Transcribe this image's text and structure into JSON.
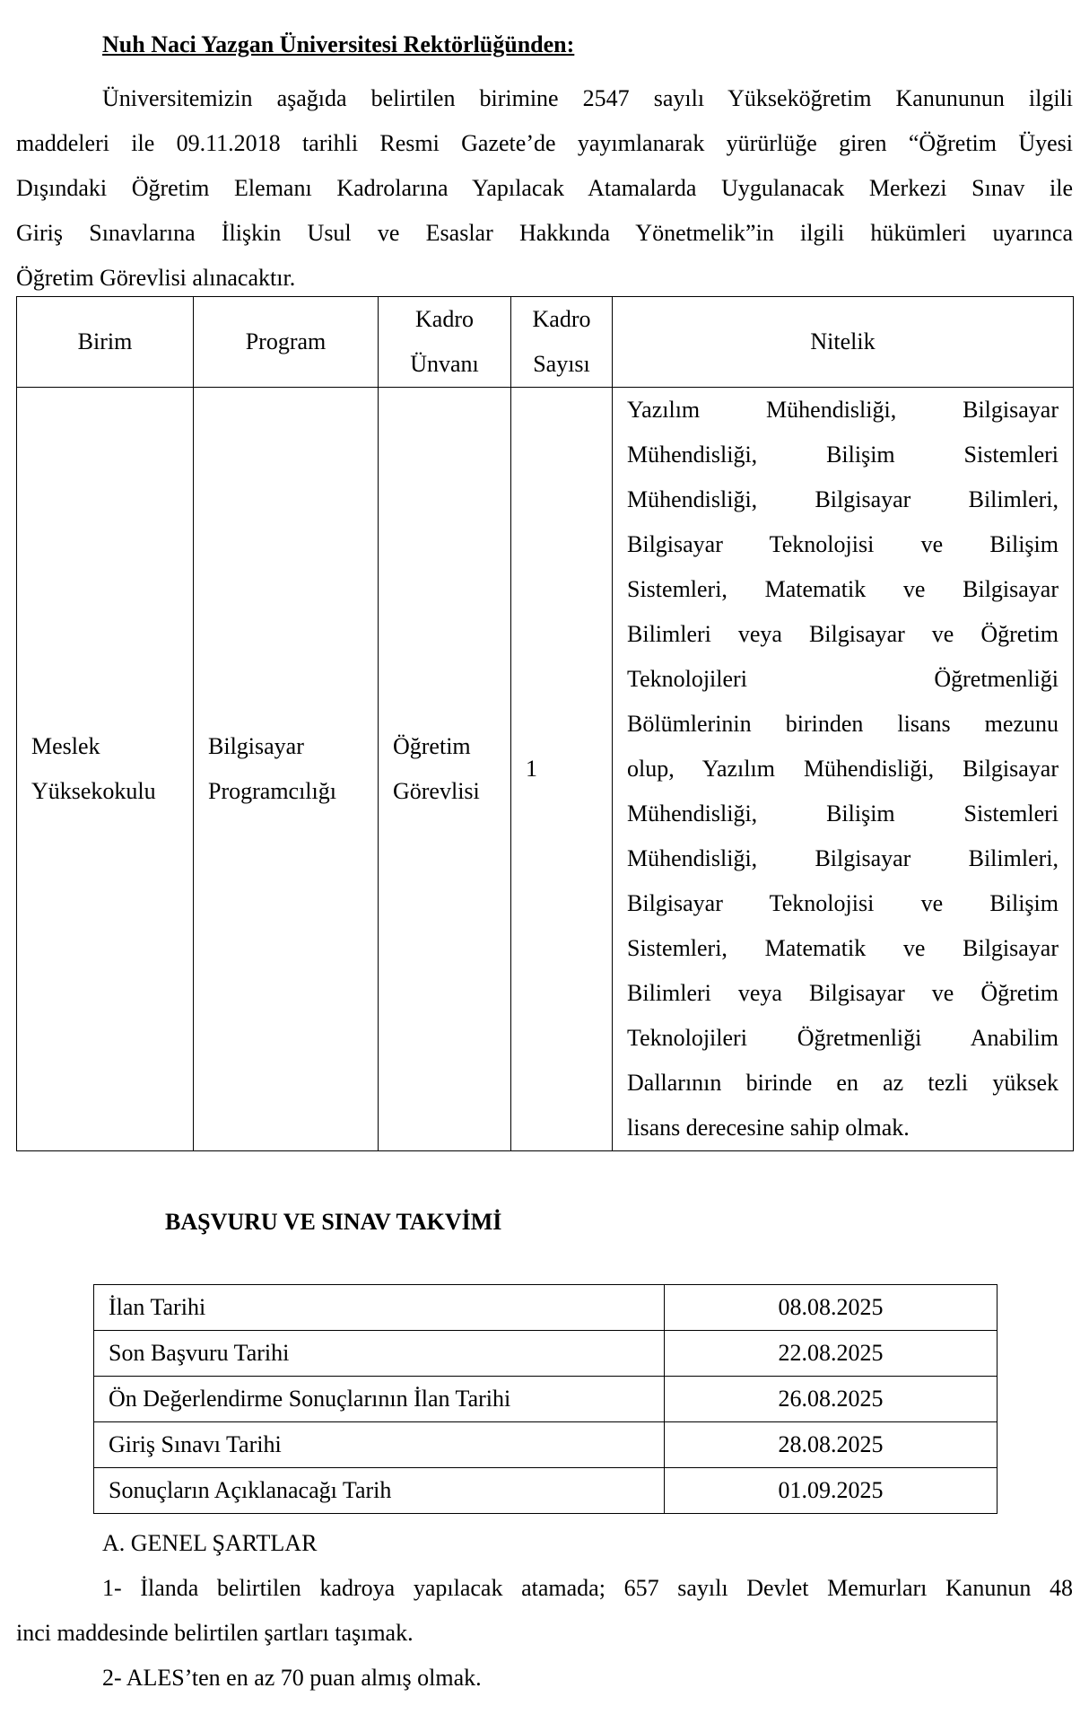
{
  "title": "Nuh Naci Yazgan Üniversitesi Rektörlüğünden:",
  "intro_lines": [
    "Üniversitemizin aşağıda belirtilen birimine 2547 sayılı Yükseköğretim Kanununun ilgili",
    "maddeleri ile 09.11.2018 tarihli Resmi Gazete’de yayımlanarak yürürlüğe giren “Öğretim Üyesi",
    "Dışındaki Öğretim Elemanı Kadrolarına Yapılacak Atamalarda Uygulanacak Merkezi Sınav ile",
    "Giriş Sınavlarına İlişkin Usul ve Esaslar Hakkında Yönetmelik”in ilgili hükümleri uyarınca",
    "Öğretim Görevlisi alınacaktır."
  ],
  "position_table": {
    "headers": {
      "birim": "Birim",
      "program": "Program",
      "unvan_1": "Kadro",
      "unvan_2": "Ünvanı",
      "sayi_1": "Kadro",
      "sayi_2": "Sayısı",
      "nitelik": "Nitelik"
    },
    "row": {
      "birim_1": "Meslek",
      "birim_2": "Yüksekokulu",
      "program_1": "Bilgisayar",
      "program_2": "Programcılığı",
      "unvan_1": "Öğretim",
      "unvan_2": "Görevlisi",
      "sayi": "1",
      "nitelik_lines": [
        "Yazılım Mühendisliği, Bilgisayar",
        "Mühendisliği, Bilişim Sistemleri",
        "Mühendisliği, Bilgisayar Bilimleri,",
        "Bilgisayar Teknolojisi ve Bilişim",
        "Sistemleri, Matematik ve Bilgisayar",
        "Bilimleri veya Bilgisayar ve Öğretim",
        "Teknolojileri Öğretmenliği",
        "Bölümlerinin birinden lisans mezunu",
        "olup, Yazılım Mühendisliği, Bilgisayar",
        "Mühendisliği, Bilişim Sistemleri",
        "Mühendisliği, Bilgisayar Bilimleri,",
        "Bilgisayar Teknolojisi ve Bilişim",
        "Sistemleri, Matematik ve Bilgisayar",
        "Bilimleri veya Bilgisayar ve Öğretim",
        "Teknolojileri Öğretmenliği Anabilim",
        "Dallarının birinde en az tezli yüksek",
        "lisans derecesine sahip olmak."
      ]
    }
  },
  "calendar": {
    "heading": "BAŞVURU VE SINAV TAKVİMİ",
    "rows": [
      {
        "label": "İlan Tarihi",
        "date": "08.08.2025"
      },
      {
        "label": "Son Başvuru Tarihi",
        "date": "22.08.2025"
      },
      {
        "label": "Ön Değerlendirme Sonuçlarının İlan Tarihi",
        "date": "26.08.2025"
      },
      {
        "label": "Giriş Sınavı Tarihi",
        "date": "28.08.2025"
      },
      {
        "label": "Sonuçların Açıklanacağı Tarih",
        "date": "01.09.2025"
      }
    ]
  },
  "requirements": {
    "heading": "A. GENEL ŞARTLAR",
    "item1_line1": "1- İlanda belirtilen kadroya yapılacak atamada; 657 sayılı Devlet Memurları Kanunun 48",
    "item1_line2": "inci maddesinde belirtilen şartları taşımak.",
    "item2": "2- ALES’ten en az 70 puan almış olmak."
  }
}
